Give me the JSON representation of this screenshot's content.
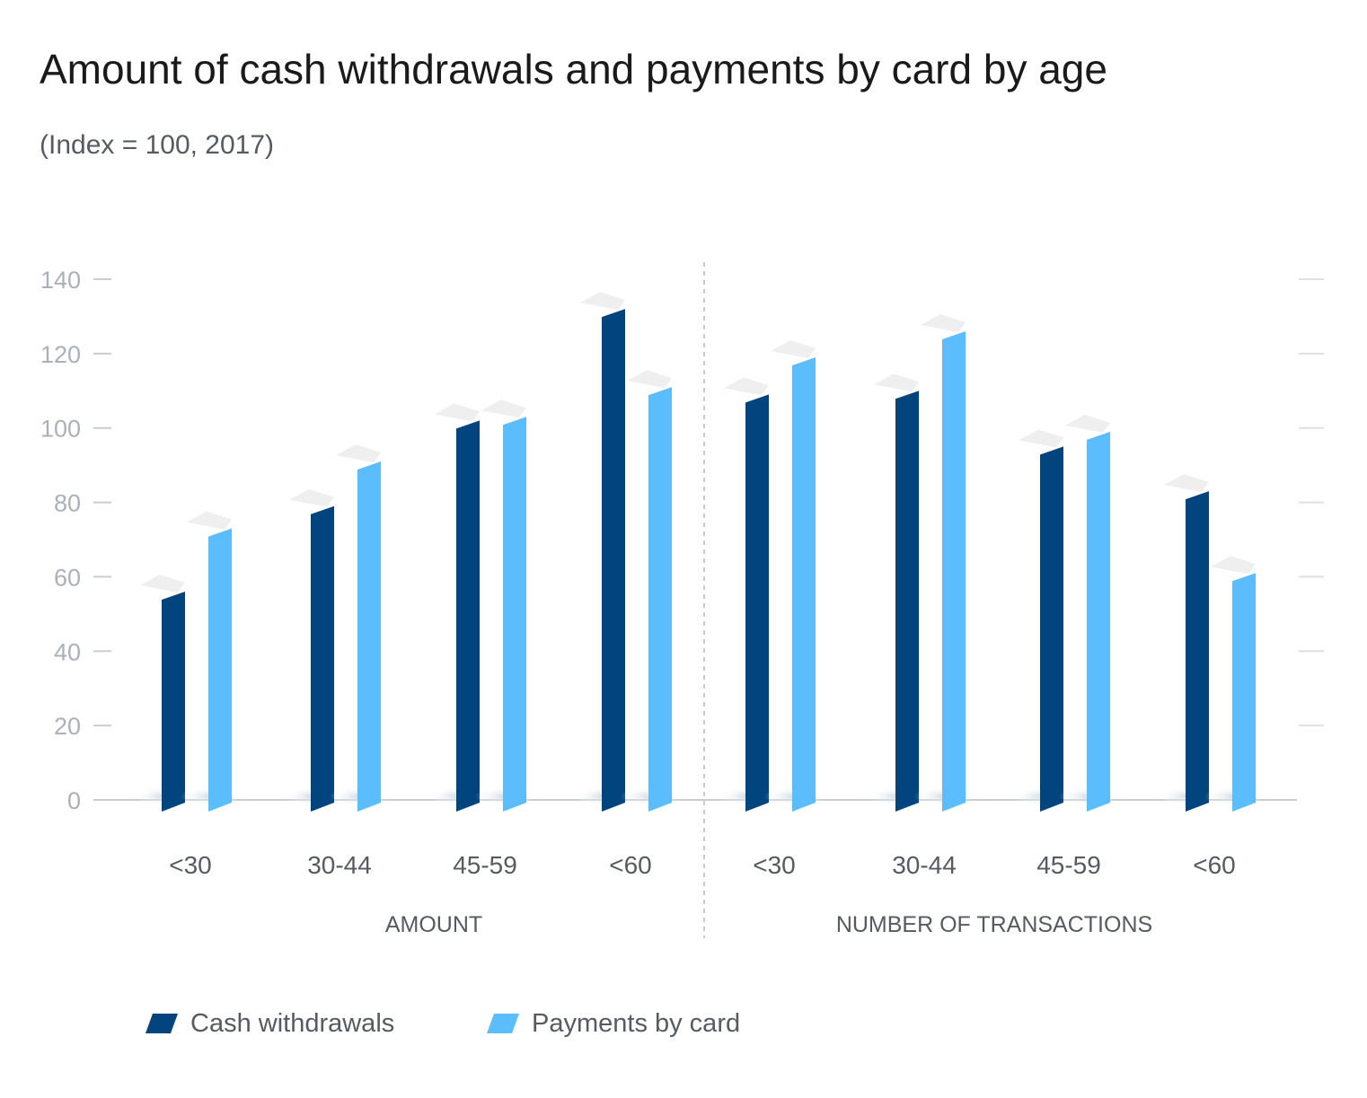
{
  "chart_data": {
    "type": "bar",
    "title": "Amount of cash withdrawals and payments by card by age",
    "subtitle": "(Index = 100, 2017)",
    "ylim": [
      0,
      140
    ],
    "yticks": [
      0,
      20,
      40,
      60,
      80,
      100,
      120,
      140
    ],
    "groups": [
      {
        "label": "AMOUNT",
        "categories": [
          "<30",
          "30-44",
          "45-59",
          "<60"
        ]
      },
      {
        "label": "NUMBER OF TRANSACTIONS",
        "categories": [
          "<30",
          "30-44",
          "45-59",
          "<60"
        ]
      }
    ],
    "series": [
      {
        "name": "Cash withdrawals",
        "color": "#02457e",
        "values": [
          56,
          79,
          102,
          132,
          109,
          110,
          95,
          83
        ]
      },
      {
        "name": "Payments by card",
        "color": "#5bbdfc",
        "values": [
          73,
          91,
          103,
          111,
          119,
          126,
          99,
          61
        ]
      }
    ],
    "grid": false,
    "legend_position": "bottom-left"
  }
}
